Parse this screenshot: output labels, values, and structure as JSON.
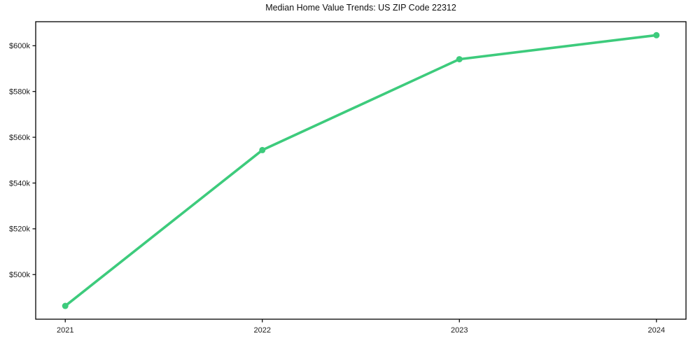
{
  "page": {
    "background": "#ffffff"
  },
  "chart_data": {
    "type": "line",
    "title": "Median Home Value Trends: US ZIP Code 22312",
    "x": [
      2021,
      2022,
      2023,
      2024
    ],
    "values": [
      486300,
      554400,
      594100,
      604600
    ],
    "x_tick_labels": [
      "2021",
      "2022",
      "2023",
      "2024"
    ],
    "y_ticks": [
      500000,
      520000,
      540000,
      560000,
      580000,
      600000
    ],
    "y_tick_labels": [
      "$500k",
      "$520k",
      "$540k",
      "$560k",
      "$580k",
      "$600k"
    ],
    "xlim": [
      2020.85,
      2024.15
    ],
    "ylim": [
      480500,
      610500
    ],
    "xlabel": "",
    "ylabel": "",
    "grid": false,
    "legend": "none",
    "line_color": "#3dcb7c",
    "marker": "circle",
    "axis_color": "#000000",
    "text_color": "#1c1c1c"
  }
}
